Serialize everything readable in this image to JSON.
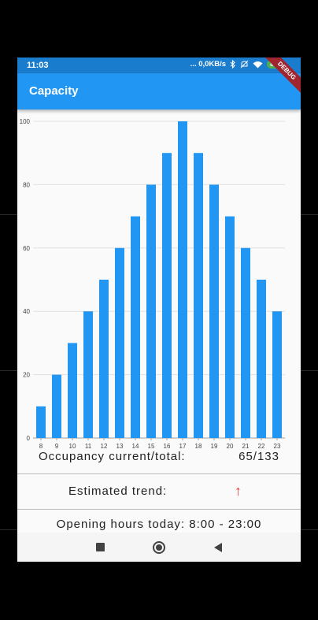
{
  "status_bar": {
    "time": "11:03",
    "indicators": "... 0,0KB/s",
    "icons": [
      "bluetooth-icon",
      "mute-icon",
      "wifi-icon"
    ],
    "battery": "85"
  },
  "app_bar": {
    "title": "Capacity"
  },
  "debug_banner": "DEBUG",
  "chart_data": {
    "type": "bar",
    "categories": [
      "8",
      "9",
      "10",
      "11",
      "12",
      "13",
      "14",
      "15",
      "16",
      "17",
      "18",
      "19",
      "20",
      "21",
      "22",
      "23"
    ],
    "values": [
      10,
      20,
      30,
      40,
      50,
      60,
      70,
      80,
      90,
      100,
      90,
      80,
      70,
      60,
      50,
      40
    ],
    "ylim": [
      0,
      100
    ],
    "yticks": [
      0,
      20,
      40,
      60,
      80,
      100
    ],
    "grid": true,
    "bar_color": "#2196f3"
  },
  "occupancy": {
    "label": "Occupancy current/total:",
    "value": "65/133"
  },
  "trend": {
    "label": "Estimated trend:",
    "arrow": "↑",
    "arrow_color": "#e53935"
  },
  "hours": {
    "text": "Opening hours today: 8:00 - 23:00"
  },
  "nav_bar": {
    "icons": [
      "recents-square-icon",
      "home-circle-icon",
      "back-triangle-icon"
    ]
  }
}
